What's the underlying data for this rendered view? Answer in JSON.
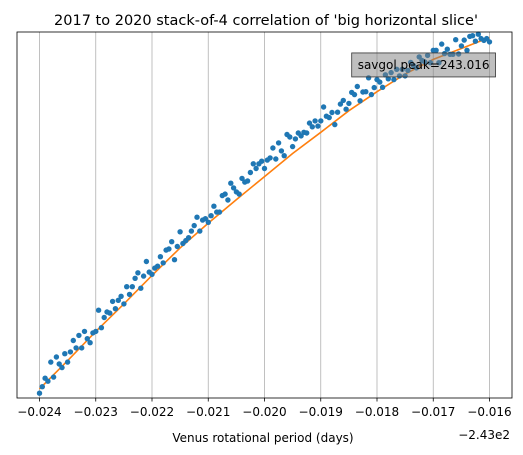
{
  "chart_data": {
    "type": "scatter",
    "title": "2017 to 2020 stack-of-4 correlation of 'big horizontal slice'",
    "xlabel": "Venus rotational period (days)",
    "ylabel": "",
    "x_offset_label": "−2.43e2",
    "x_offset": -243,
    "xlim": [
      -243.0244,
      -243.0156
    ],
    "ylim": [
      0.0,
      1.0
    ],
    "xticks": [
      -243.024,
      -243.023,
      -243.022,
      -243.021,
      -243.02,
      -243.019,
      -243.018,
      -243.017,
      -243.016
    ],
    "xtick_labels": [
      "−0.024",
      "−0.023",
      "−0.022",
      "−0.021",
      "−0.020",
      "−0.019",
      "−0.018",
      "−0.017",
      "−0.016"
    ],
    "yticks_visible": false,
    "grid": "x",
    "legend": "none",
    "annotation": {
      "text": "savgol peak=243.016",
      "x": -243.016,
      "y": 0.91,
      "box_color": "#7f7f7f"
    },
    "series": [
      {
        "kind": "points",
        "color": "#1f77b4",
        "x": [
          -243.024,
          -243.02395,
          -243.0239,
          -243.02385,
          -243.0238,
          -243.02375,
          -243.0237,
          -243.02365,
          -243.0236,
          -243.02355,
          -243.0235,
          -243.02345,
          -243.0234,
          -243.02335,
          -243.0233,
          -243.02325,
          -243.0232,
          -243.02315,
          -243.0231,
          -243.02305,
          -243.023,
          -243.02295,
          -243.0229,
          -243.02285,
          -243.0228,
          -243.02275,
          -243.0227,
          -243.02265,
          -243.0226,
          -243.02255,
          -243.0225,
          -243.02245,
          -243.0224,
          -243.02235,
          -243.0223,
          -243.02225,
          -243.0222,
          -243.02215,
          -243.0221,
          -243.02205,
          -243.022,
          -243.02195,
          -243.0219,
          -243.02185,
          -243.0218,
          -243.02175,
          -243.0217,
          -243.02165,
          -243.0216,
          -243.02155,
          -243.0215,
          -243.02145,
          -243.0214,
          -243.02135,
          -243.0213,
          -243.02125,
          -243.0212,
          -243.02115,
          -243.0211,
          -243.02105,
          -243.021,
          -243.02095,
          -243.0209,
          -243.02085,
          -243.0208,
          -243.02075,
          -243.0207,
          -243.02065,
          -243.0206,
          -243.02055,
          -243.0205,
          -243.02045,
          -243.0204,
          -243.02035,
          -243.0203,
          -243.02025,
          -243.0202,
          -243.02015,
          -243.0201,
          -243.02005,
          -243.02,
          -243.01995,
          -243.0199,
          -243.01985,
          -243.0198,
          -243.01975,
          -243.0197,
          -243.01965,
          -243.0196,
          -243.01955,
          -243.0195,
          -243.01945,
          -243.0194,
          -243.01935,
          -243.0193,
          -243.01925,
          -243.0192,
          -243.01915,
          -243.0191,
          -243.01905,
          -243.019,
          -243.01895,
          -243.0189,
          -243.01885,
          -243.0188,
          -243.01875,
          -243.0187,
          -243.01865,
          -243.0186,
          -243.01855,
          -243.0185,
          -243.01845,
          -243.0184,
          -243.01835,
          -243.0183,
          -243.01825,
          -243.0182,
          -243.01815,
          -243.0181,
          -243.01805,
          -243.018,
          -243.01795,
          -243.0179,
          -243.01785,
          -243.0178,
          -243.01775,
          -243.0177,
          -243.01765,
          -243.0176,
          -243.01755,
          -243.0175,
          -243.01745,
          -243.0174,
          -243.01735,
          -243.0173,
          -243.01725,
          -243.0172,
          -243.01715,
          -243.0171,
          -243.01705,
          -243.017,
          -243.01695,
          -243.0169,
          -243.01685,
          -243.0168,
          -243.01675,
          -243.0167,
          -243.01665,
          -243.0166,
          -243.01655,
          -243.0165,
          -243.01645,
          -243.0164,
          -243.01635,
          -243.0163,
          -243.01625,
          -243.0162,
          -243.01615,
          -243.0161,
          -243.01605,
          -243.016
        ],
        "y": [
          0.013,
          0.031,
          0.054,
          0.046,
          0.098,
          0.057,
          0.112,
          0.093,
          0.083,
          0.121,
          0.098,
          0.126,
          0.157,
          0.137,
          0.171,
          0.137,
          0.182,
          0.162,
          0.151,
          0.178,
          0.182,
          0.24,
          0.192,
          0.22,
          0.235,
          0.232,
          0.264,
          0.244,
          0.267,
          0.278,
          0.257,
          0.304,
          0.283,
          0.304,
          0.327,
          0.342,
          0.3,
          0.333,
          0.373,
          0.344,
          0.338,
          0.355,
          0.36,
          0.386,
          0.369,
          0.404,
          0.407,
          0.427,
          0.378,
          0.414,
          0.454,
          0.422,
          0.43,
          0.438,
          0.456,
          0.471,
          0.494,
          0.456,
          0.486,
          0.49,
          0.48,
          0.498,
          0.524,
          0.508,
          0.508,
          0.553,
          0.557,
          0.541,
          0.587,
          0.574,
          0.563,
          0.557,
          0.6,
          0.59,
          0.593,
          0.616,
          0.64,
          0.627,
          0.64,
          0.647,
          0.627,
          0.65,
          0.656,
          0.683,
          0.653,
          0.697,
          0.675,
          0.662,
          0.72,
          0.713,
          0.687,
          0.708,
          0.724,
          0.716,
          0.726,
          0.724,
          0.751,
          0.741,
          0.757,
          0.743,
          0.757,
          0.795,
          0.77,
          0.766,
          0.78,
          0.747,
          0.781,
          0.803,
          0.813,
          0.789,
          0.805,
          0.835,
          0.829,
          0.851,
          0.812,
          0.836,
          0.837,
          0.875,
          0.829,
          0.848,
          0.87,
          0.863,
          0.849,
          0.883,
          0.872,
          0.889,
          0.87,
          0.898,
          0.88,
          0.898,
          0.88,
          0.895,
          0.917,
          0.908,
          0.902,
          0.932,
          0.922,
          0.918,
          0.936,
          0.916,
          0.95,
          0.95,
          0.916,
          0.967,
          0.941,
          0.953,
          0.939,
          0.939,
          0.979,
          0.94,
          0.962,
          0.978,
          0.95,
          0.988,
          0.99,
          0.975,
          0.994,
          0.982,
          0.977,
          0.982,
          0.973
        ]
      },
      {
        "kind": "line",
        "color": "#ff7f0e",
        "x": [
          -243.024,
          -243.0235,
          -243.023,
          -243.0225,
          -243.022,
          -243.0215,
          -243.021,
          -243.0205,
          -243.02,
          -243.0195,
          -243.019,
          -243.0185,
          -243.018,
          -243.0175,
          -243.017,
          -243.0165,
          -243.016
        ],
        "y": [
          0.025,
          0.102,
          0.182,
          0.257,
          0.335,
          0.41,
          0.478,
          0.542,
          0.605,
          0.668,
          0.726,
          0.785,
          0.837,
          0.885,
          0.925,
          0.955,
          0.985
        ]
      }
    ]
  }
}
